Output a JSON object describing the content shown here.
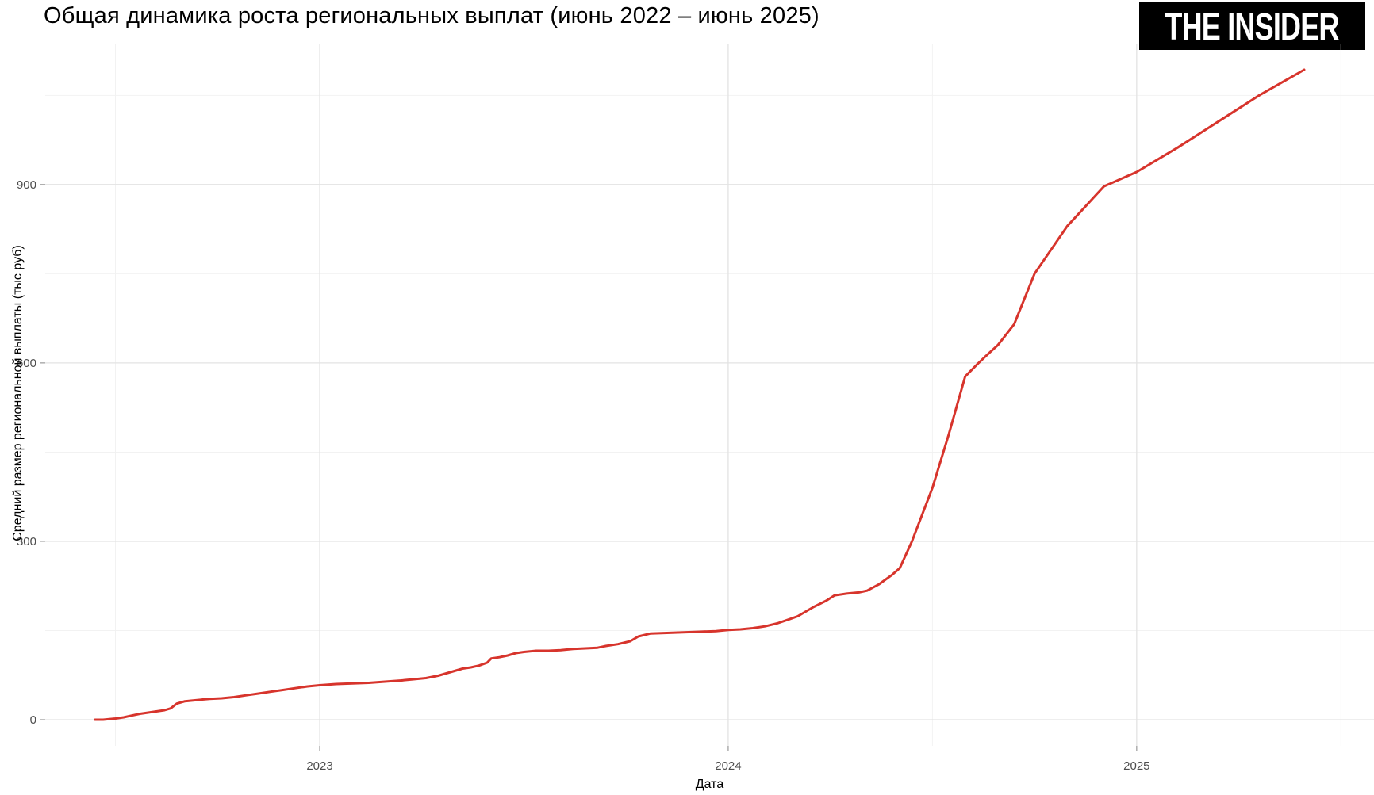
{
  "header": {
    "title": "Общая динамика роста региональных выплат (июнь 2022 – июнь 2025)"
  },
  "logo": {
    "text": "THE INSIDER"
  },
  "chart_data": {
    "type": "line",
    "title": "Общая динамика роста региональных выплат (июнь 2022 – июнь 2025)",
    "xlabel": "Дата",
    "ylabel": "Средний размер региональной выплаты (тыс руб)",
    "x_unit": "decimal_year",
    "x_range": [
      2022.328,
      2025.581
    ],
    "y_range": [
      -44,
      1137
    ],
    "x_ticks": [
      {
        "value": 2023,
        "label": "2023"
      },
      {
        "value": 2024,
        "label": "2024"
      },
      {
        "value": 2025,
        "label": "2025"
      }
    ],
    "x_minor_ticks": [
      2022.5,
      2023.5,
      2024.5,
      2025.5
    ],
    "y_ticks": [
      {
        "value": 0,
        "label": "0"
      },
      {
        "value": 300,
        "label": "300"
      },
      {
        "value": 600,
        "label": "600"
      },
      {
        "value": 900,
        "label": "900"
      }
    ],
    "y_minor_ticks": [
      150,
      450,
      750,
      1050
    ],
    "grid": true,
    "legend": "none",
    "line_color": "#d7342c",
    "grid_major_color": "#e3e3e3",
    "grid_minor_color": "#f1f1f1",
    "tick_label_color": "#4d4d4d",
    "series": [
      {
        "points": [
          [
            2022.45,
            0
          ],
          [
            2022.47,
            0
          ],
          [
            2022.5,
            2
          ],
          [
            2022.52,
            4
          ],
          [
            2022.54,
            7
          ],
          [
            2022.56,
            10
          ],
          [
            2022.58,
            12
          ],
          [
            2022.6,
            14
          ],
          [
            2022.62,
            16
          ],
          [
            2022.635,
            19
          ],
          [
            2022.65,
            27
          ],
          [
            2022.67,
            31
          ],
          [
            2022.7,
            33
          ],
          [
            2022.73,
            35
          ],
          [
            2022.76,
            36
          ],
          [
            2022.79,
            38
          ],
          [
            2022.82,
            41
          ],
          [
            2022.85,
            44
          ],
          [
            2022.88,
            47
          ],
          [
            2022.91,
            50
          ],
          [
            2022.94,
            53
          ],
          [
            2022.97,
            56
          ],
          [
            2023.0,
            58
          ],
          [
            2023.04,
            60
          ],
          [
            2023.08,
            61
          ],
          [
            2023.12,
            62
          ],
          [
            2023.16,
            64
          ],
          [
            2023.2,
            66
          ],
          [
            2023.23,
            68
          ],
          [
            2023.26,
            70
          ],
          [
            2023.29,
            74
          ],
          [
            2023.31,
            78
          ],
          [
            2023.33,
            82
          ],
          [
            2023.35,
            86
          ],
          [
            2023.37,
            88
          ],
          [
            2023.39,
            91
          ],
          [
            2023.41,
            96
          ],
          [
            2023.42,
            103
          ],
          [
            2023.44,
            105
          ],
          [
            2023.46,
            108
          ],
          [
            2023.48,
            112
          ],
          [
            2023.5,
            114
          ],
          [
            2023.53,
            116
          ],
          [
            2023.56,
            116
          ],
          [
            2023.59,
            117
          ],
          [
            2023.62,
            119
          ],
          [
            2023.65,
            120
          ],
          [
            2023.68,
            121
          ],
          [
            2023.7,
            124
          ],
          [
            2023.73,
            127
          ],
          [
            2023.76,
            132
          ],
          [
            2023.78,
            140
          ],
          [
            2023.81,
            145
          ],
          [
            2023.85,
            146
          ],
          [
            2023.89,
            147
          ],
          [
            2023.93,
            148
          ],
          [
            2023.97,
            149
          ],
          [
            2024.0,
            151
          ],
          [
            2024.03,
            152
          ],
          [
            2024.06,
            154
          ],
          [
            2024.09,
            157
          ],
          [
            2024.12,
            162
          ],
          [
            2024.15,
            169
          ],
          [
            2024.17,
            174
          ],
          [
            2024.19,
            182
          ],
          [
            2024.21,
            190
          ],
          [
            2024.24,
            200
          ],
          [
            2024.26,
            209
          ],
          [
            2024.29,
            212
          ],
          [
            2024.32,
            214
          ],
          [
            2024.34,
            217
          ],
          [
            2024.37,
            228
          ],
          [
            2024.4,
            243
          ],
          [
            2024.42,
            255
          ],
          [
            2024.45,
            300
          ],
          [
            2024.5,
            390
          ],
          [
            2024.54,
            480
          ],
          [
            2024.58,
            577
          ],
          [
            2024.61,
            598
          ],
          [
            2024.63,
            611
          ],
          [
            2024.66,
            630
          ],
          [
            2024.7,
            665
          ],
          [
            2024.75,
            750
          ],
          [
            2024.83,
            830
          ],
          [
            2024.92,
            897
          ],
          [
            2025.0,
            921
          ],
          [
            2025.1,
            962
          ],
          [
            2025.2,
            1006
          ],
          [
            2025.3,
            1050
          ],
          [
            2025.41,
            1093
          ]
        ]
      }
    ]
  }
}
